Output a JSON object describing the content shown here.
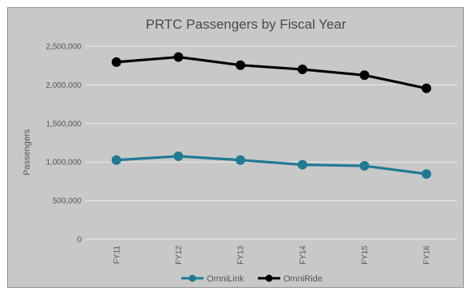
{
  "chart_data": {
    "type": "line",
    "title": "PRTC Passengers by Fiscal Year",
    "xlabel": "",
    "ylabel": "Passengers",
    "categories": [
      "FY11",
      "FY12",
      "FY13",
      "FY14",
      "FY15",
      "FY16"
    ],
    "ylim": [
      0,
      2500000
    ],
    "yticks": [
      0,
      500000,
      1000000,
      1500000,
      2000000,
      2500000
    ],
    "ytick_labels": [
      "0",
      "500,000",
      "1,000,000",
      "1,500,000",
      "2,000,000",
      "2,500,000"
    ],
    "grid": true,
    "legend_position": "bottom",
    "series": [
      {
        "name": "OmniLink",
        "color": "#1f7a93",
        "values": [
          1025000,
          1075000,
          1025000,
          965000,
          950000,
          845000
        ]
      },
      {
        "name": "OmniRide",
        "color": "#000000",
        "values": [
          2295000,
          2360000,
          2255000,
          2200000,
          2125000,
          1955000
        ]
      }
    ]
  }
}
